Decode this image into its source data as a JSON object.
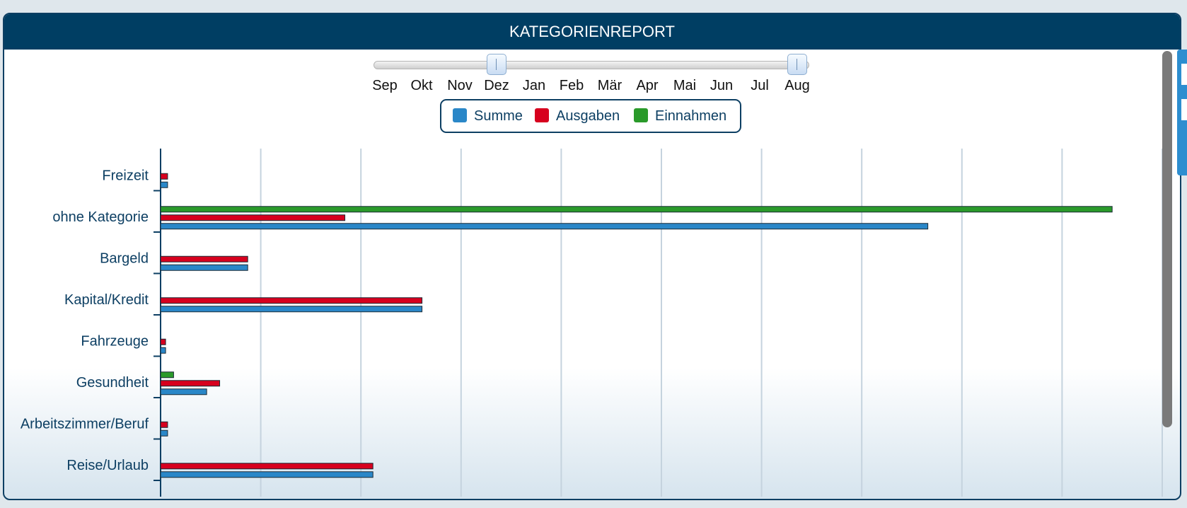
{
  "header": {
    "title": "KATEGORIENREPORT"
  },
  "slider": {
    "months": [
      "Sep",
      "Okt",
      "Nov",
      "Dez",
      "Jan",
      "Feb",
      "Mär",
      "Apr",
      "Mai",
      "Jun",
      "Jul",
      "Aug"
    ],
    "selected_start": "Dez",
    "selected_end": "Aug"
  },
  "legend": [
    {
      "label": "Summe",
      "color": "#2a87c8"
    },
    {
      "label": "Ausgaben",
      "color": "#d7001e"
    },
    {
      "label": "Einnahmen",
      "color": "#2a9a2a"
    }
  ],
  "chart_data": {
    "type": "bar",
    "orientation": "horizontal",
    "categories": [
      "Freizeit",
      "ohne Kategorie",
      "Bargeld",
      "Kapital/Kredit",
      "Fahrzeuge",
      "Gesundheit",
      "Arbeitszimmer/Beruf",
      "Reise/Urlaub"
    ],
    "series": [
      {
        "name": "Einnahmen",
        "color": "#2a9a2a",
        "values": [
          0,
          9.5,
          0,
          0,
          0,
          0.13,
          0,
          0
        ]
      },
      {
        "name": "Ausgaben",
        "color": "#d7001e",
        "values": [
          0.07,
          1.84,
          0.87,
          2.61,
          0.05,
          0.59,
          0.07,
          2.12
        ]
      },
      {
        "name": "Summe",
        "color": "#2a87c8",
        "values": [
          0.07,
          7.66,
          0.87,
          2.61,
          0.05,
          0.46,
          0.07,
          2.12
        ]
      }
    ],
    "xlim": [
      0,
      10
    ],
    "grid": true,
    "legend_position": "top-center"
  }
}
